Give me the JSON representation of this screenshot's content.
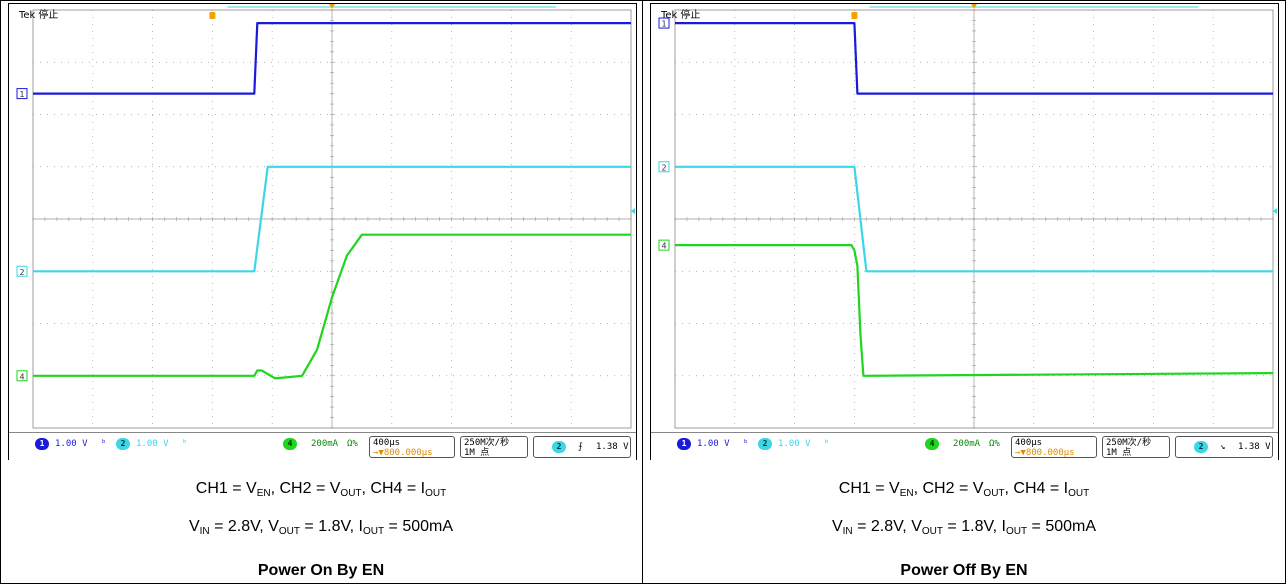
{
  "chart_data": [
    {
      "type": "line",
      "title": "Power On By EN",
      "scope_brand": "Tek",
      "scope_state": "停止",
      "xunit": "µs",
      "xlim": [
        -2000,
        2000
      ],
      "ylim": [
        -4,
        4
      ],
      "grid": true,
      "series": [
        {
          "name": "CH1",
          "color": "#1a1adc",
          "x": [
            -2000,
            -520,
            -500,
            2000
          ],
          "y": [
            2.4,
            2.4,
            3.75,
            3.75
          ]
        },
        {
          "name": "CH2",
          "color": "#3cd6e6",
          "x": [
            -2000,
            -520,
            -430,
            2000
          ],
          "y": [
            -1.0,
            -1.0,
            1.0,
            1.0
          ]
        },
        {
          "name": "CH4",
          "color": "#1ed61e",
          "x": [
            -2000,
            -520,
            -500,
            -470,
            -380,
            -200,
            -100,
            0,
            100,
            200,
            300,
            2000
          ],
          "y": [
            -3.0,
            -3.0,
            -2.9,
            -2.9,
            -3.05,
            -3.0,
            -2.5,
            -1.5,
            -0.7,
            -0.3,
            -0.3,
            -0.3
          ]
        }
      ],
      "status": {
        "ch1_scale": "1.00 V",
        "ch2_scale": "1.00 V",
        "ch4_scale": "200mA",
        "ch4_ohm": "Ω%",
        "timebase": "400µs",
        "position": "→▼800.000µs",
        "sample_rate": "250M次/秒",
        "record_length": "1M 点",
        "trigger_ch": "2",
        "trigger_slope": "⨍",
        "trigger_level": "1.38 V"
      },
      "caption_line1": {
        "ch1": "CH1 = V",
        "ch1_sub": "EN",
        "ch2": ", CH2 = V",
        "ch2_sub": "OUT",
        "ch4": ", CH4 = I",
        "ch4_sub": "OUT"
      },
      "caption_line2": {
        "vin": "V",
        "vin_sub": "IN",
        "vin_val": " = 2.8V, V",
        "vout_sub": "OUT",
        "vout_val": " = 1.8V, I",
        "iout_sub": "OUT",
        "iout_val": " = 500mA"
      }
    },
    {
      "type": "line",
      "title": "Power Off By EN",
      "scope_brand": "Tek",
      "scope_state": "停止",
      "xunit": "µs",
      "xlim": [
        -2000,
        2000
      ],
      "ylim": [
        -4,
        4
      ],
      "grid": true,
      "series": [
        {
          "name": "CH1",
          "color": "#1a1adc",
          "x": [
            -2000,
            -800,
            -780,
            2000
          ],
          "y": [
            3.75,
            3.75,
            2.4,
            2.4
          ]
        },
        {
          "name": "CH2",
          "color": "#3cd6e6",
          "x": [
            -2000,
            -800,
            -760,
            -720,
            2000
          ],
          "y": [
            1.0,
            1.0,
            0,
            -1.0,
            -1.0
          ]
        },
        {
          "name": "CH4",
          "color": "#1ed61e",
          "x": [
            -2000,
            -820,
            -800,
            -780,
            -760,
            -740,
            2000
          ],
          "y": [
            -0.5,
            -0.5,
            -0.6,
            -0.9,
            -2.2,
            -3.0,
            -2.95
          ]
        }
      ],
      "status": {
        "ch1_scale": "1.00 V",
        "ch2_scale": "1.00 V",
        "ch4_scale": "200mA",
        "ch4_ohm": "Ω%",
        "timebase": "400µs",
        "position": "→▼800.000µs",
        "sample_rate": "250M次/秒",
        "record_length": "1M 点",
        "trigger_ch": "2",
        "trigger_slope": "↘",
        "trigger_level": "1.38 V"
      },
      "caption_line1": {
        "ch1": "CH1 = V",
        "ch1_sub": "EN",
        "ch2": ", CH2 = V",
        "ch2_sub": "OUT",
        "ch4": ", CH4 = I",
        "ch4_sub": "OUT"
      },
      "caption_line2": {
        "vin": "V",
        "vin_sub": "IN",
        "vin_val": " = 2.8V, V",
        "vout_sub": "OUT",
        "vout_val": " = 1.8V, I",
        "iout_sub": "OUT",
        "iout_val": " = 500mA"
      }
    }
  ],
  "colors": {
    "ch1": "#1a1adc",
    "ch2": "#3cd6e6",
    "ch4": "#1ed61e",
    "grid": "#9a9a9a",
    "trigger_marker": "#f5a000"
  },
  "icons": {
    "trigger_marker": "trigger-position-icon",
    "ch_marker": "channel-ground-marker-icon"
  }
}
